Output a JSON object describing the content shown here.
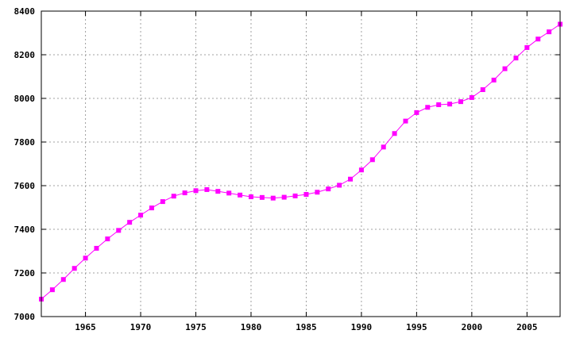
{
  "chart_data": {
    "type": "line",
    "title": "",
    "xlabel": "",
    "ylabel": "",
    "xlim": [
      1961,
      2008
    ],
    "ylim": [
      7000,
      8400
    ],
    "x_ticks": [
      1965,
      1970,
      1975,
      1980,
      1985,
      1990,
      1995,
      2000,
      2005
    ],
    "y_ticks": [
      7000,
      7200,
      7400,
      7600,
      7800,
      8000,
      8200,
      8400
    ],
    "grid": true,
    "legend": "none",
    "series": [
      {
        "color": "#ff00ff",
        "marker": "square",
        "x": [
          1961,
          1962,
          1963,
          1964,
          1965,
          1966,
          1967,
          1968,
          1969,
          1970,
          1971,
          1972,
          1973,
          1974,
          1975,
          1976,
          1977,
          1978,
          1979,
          1980,
          1981,
          1982,
          1983,
          1984,
          1985,
          1986,
          1987,
          1988,
          1989,
          1990,
          1991,
          1992,
          1993,
          1994,
          1995,
          1996,
          1997,
          1998,
          1999,
          2000,
          2001,
          2002,
          2003,
          2004,
          2005,
          2006,
          2007,
          2008
        ],
        "y": [
          7080,
          7123,
          7170,
          7221,
          7268,
          7313,
          7356,
          7395,
          7432,
          7465,
          7498,
          7527,
          7552,
          7567,
          7577,
          7582,
          7574,
          7566,
          7557,
          7549,
          7546,
          7543,
          7547,
          7553,
          7560,
          7570,
          7585,
          7602,
          7630,
          7672,
          7719,
          7777,
          7839,
          7896,
          7935,
          7959,
          7971,
          7974,
          7985,
          8004,
          8040,
          8084,
          8136,
          8185,
          8233,
          8272,
          8305,
          8340
        ]
      }
    ]
  }
}
